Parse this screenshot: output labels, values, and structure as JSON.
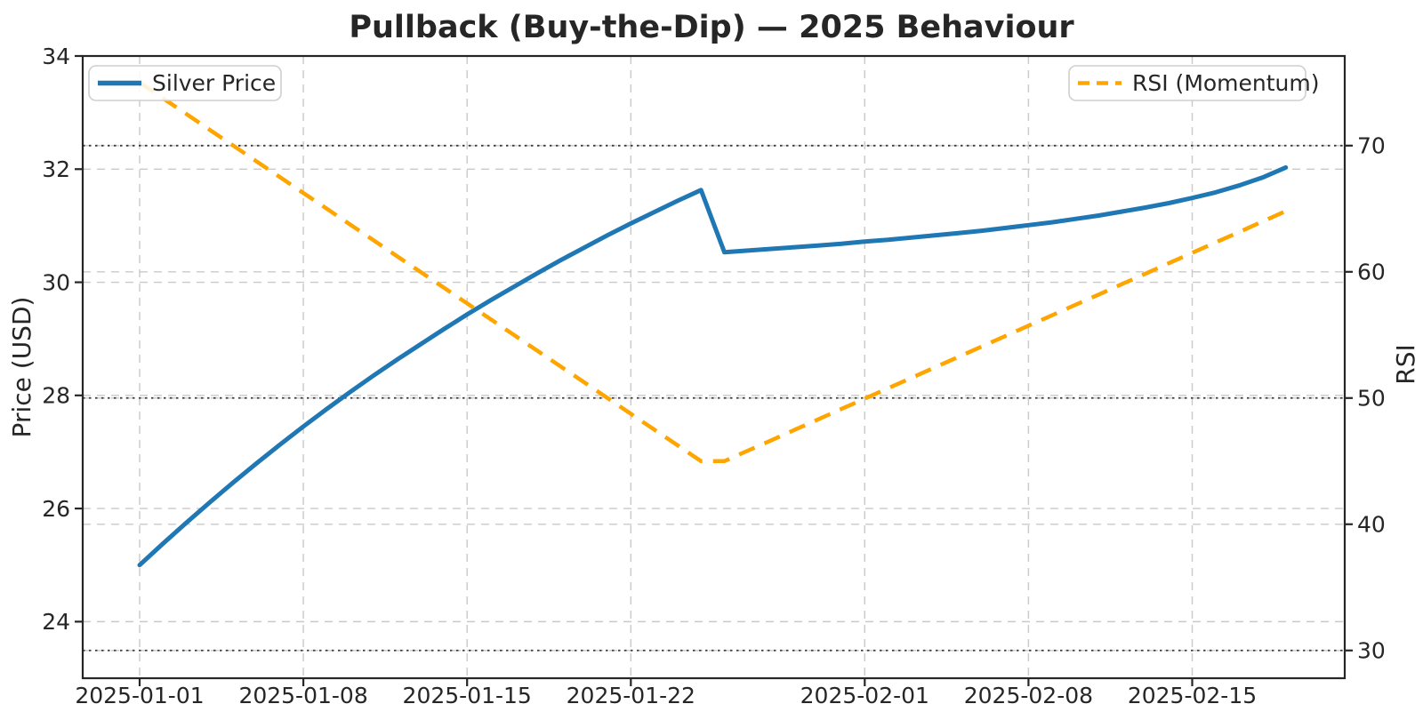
{
  "title": "Pullback (Buy-the-Dip) — 2025 Behaviour",
  "legend": {
    "price_label": "Silver Price",
    "rsi_label": "RSI (Momentum)"
  },
  "chart_data": {
    "type": "line",
    "title": "Pullback (Buy-the-Dip) — 2025 Behaviour",
    "xlabel": "",
    "left_ylabel": "Price (USD)",
    "right_ylabel": "RSI",
    "left_axis_color": "#1f77b4",
    "right_axis_color": "#ffa500",
    "left_ylim": [
      23,
      34
    ],
    "right_ylim": [
      27.8,
      77.1
    ],
    "left_ticks": [
      24,
      26,
      28,
      30,
      32,
      34
    ],
    "right_ticks": [
      30,
      40,
      50,
      60,
      70
    ],
    "x_tick_labels": [
      "2025-01-01",
      "2025-01-08",
      "2025-01-15",
      "2025-01-22",
      "2025-02-01",
      "2025-02-08",
      "2025-02-15"
    ],
    "rsi_reference_levels": [
      30,
      50,
      70
    ],
    "grid": true,
    "legend_positions": [
      "upper left",
      "upper right"
    ],
    "x": [
      "2025-01-01",
      "2025-01-02",
      "2025-01-03",
      "2025-01-04",
      "2025-01-05",
      "2025-01-06",
      "2025-01-07",
      "2025-01-08",
      "2025-01-09",
      "2025-01-10",
      "2025-01-11",
      "2025-01-12",
      "2025-01-13",
      "2025-01-14",
      "2025-01-15",
      "2025-01-16",
      "2025-01-17",
      "2025-01-18",
      "2025-01-19",
      "2025-01-20",
      "2025-01-21",
      "2025-01-22",
      "2025-01-23",
      "2025-01-24",
      "2025-01-25",
      "2025-01-26",
      "2025-01-27",
      "2025-01-28",
      "2025-01-29",
      "2025-01-30",
      "2025-01-31",
      "2025-02-01",
      "2025-02-02",
      "2025-02-03",
      "2025-02-04",
      "2025-02-05",
      "2025-02-06",
      "2025-02-07",
      "2025-02-08",
      "2025-02-09",
      "2025-02-10",
      "2025-02-11",
      "2025-02-12",
      "2025-02-13",
      "2025-02-14",
      "2025-02-15",
      "2025-02-16",
      "2025-02-17",
      "2025-02-18",
      "2025-02-19"
    ],
    "series": [
      {
        "name": "Silver Price",
        "axis": "left",
        "color": "#1f77b4",
        "style": "solid",
        "values": [
          25.0,
          25.38,
          25.75,
          26.11,
          26.46,
          26.8,
          27.13,
          27.45,
          27.76,
          28.06,
          28.35,
          28.63,
          28.9,
          29.17,
          29.43,
          29.68,
          29.92,
          30.16,
          30.39,
          30.61,
          30.83,
          31.04,
          31.24,
          31.44,
          31.63,
          30.53,
          30.56,
          30.59,
          30.62,
          30.65,
          30.68,
          30.72,
          30.75,
          30.79,
          30.83,
          30.87,
          30.91,
          30.96,
          31.01,
          31.06,
          31.12,
          31.18,
          31.25,
          31.32,
          31.4,
          31.49,
          31.59,
          31.71,
          31.85,
          32.03
        ]
      },
      {
        "name": "RSI (Momentum)",
        "axis": "right",
        "color": "#ffa500",
        "style": "dashed",
        "values": [
          75.0,
          73.75,
          72.5,
          71.25,
          70.0,
          68.75,
          67.5,
          66.25,
          65.0,
          63.75,
          62.5,
          61.25,
          60.0,
          58.75,
          57.5,
          56.25,
          55.0,
          53.75,
          52.5,
          51.25,
          50.0,
          48.75,
          47.5,
          46.25,
          45.0,
          45.0,
          45.83,
          46.65,
          47.48,
          48.3,
          49.13,
          49.95,
          50.78,
          51.6,
          52.43,
          53.25,
          54.08,
          54.9,
          55.73,
          56.55,
          57.38,
          58.2,
          59.03,
          59.85,
          60.68,
          61.5,
          62.33,
          63.15,
          63.98,
          64.8
        ]
      }
    ]
  }
}
